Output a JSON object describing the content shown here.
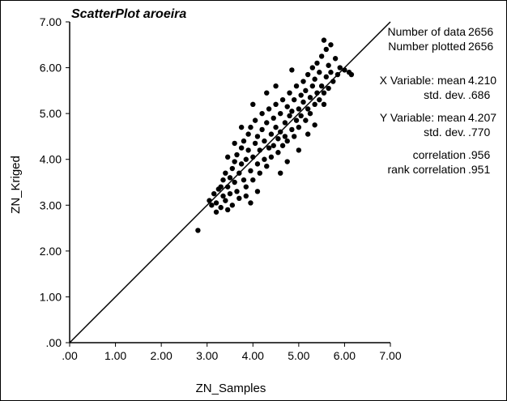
{
  "chart_data": {
    "type": "scatter",
    "title": "ScatterPlot aroeira",
    "xlabel": "ZN_Samples",
    "ylabel": "ZN_Kriged",
    "xlim": [
      0,
      7
    ],
    "ylim": [
      0,
      7
    ],
    "x_ticks": [
      ".00",
      "1.00",
      "2.00",
      "3.00",
      "4.00",
      "5.00",
      "6.00",
      "7.00"
    ],
    "y_ticks": [
      ".00",
      "1.00",
      "2.00",
      "3.00",
      "4.00",
      "5.00",
      "6.00",
      "7.00"
    ],
    "reference_line": {
      "from": [
        0,
        0
      ],
      "to": [
        7,
        7
      ]
    },
    "marker_color": "#000000",
    "grid": false,
    "stats": {
      "number_of_data": "2656",
      "number_plotted": "2656",
      "x_mean": "4.210",
      "x_std": ".686",
      "y_mean": "4.207",
      "y_std": ".770",
      "correlation": ".956",
      "rank_correlation": ".951"
    },
    "stat_labels": {
      "number_of_data": "Number of data",
      "number_plotted": "Number plotted",
      "x_mean": "X Variable: mean",
      "x_std": "std. dev.",
      "y_mean": "Y Variable: mean",
      "y_std": "std. dev.",
      "correlation": "correlation",
      "rank_correlation": "rank correlation"
    },
    "points": [
      [
        2.8,
        2.45
      ],
      [
        3.05,
        3.1
      ],
      [
        3.1,
        3.0
      ],
      [
        3.15,
        3.25
      ],
      [
        3.2,
        3.05
      ],
      [
        3.25,
        3.35
      ],
      [
        3.3,
        2.95
      ],
      [
        3.3,
        3.4
      ],
      [
        3.35,
        3.2
      ],
      [
        3.35,
        3.55
      ],
      [
        3.4,
        3.1
      ],
      [
        3.4,
        3.7
      ],
      [
        3.45,
        3.4
      ],
      [
        3.45,
        2.9
      ],
      [
        3.5,
        3.6
      ],
      [
        3.5,
        3.25
      ],
      [
        3.55,
        3.8
      ],
      [
        3.55,
        3.0
      ],
      [
        3.6,
        3.5
      ],
      [
        3.6,
        3.95
      ],
      [
        3.65,
        3.3
      ],
      [
        3.65,
        4.1
      ],
      [
        3.7,
        3.7
      ],
      [
        3.7,
        3.15
      ],
      [
        3.75,
        3.9
      ],
      [
        3.75,
        4.25
      ],
      [
        3.8,
        3.55
      ],
      [
        3.8,
        4.4
      ],
      [
        3.85,
        4.0
      ],
      [
        3.85,
        3.4
      ],
      [
        3.9,
        4.2
      ],
      [
        3.9,
        4.55
      ],
      [
        3.95,
        3.75
      ],
      [
        3.95,
        4.7
      ],
      [
        4.0,
        4.05
      ],
      [
        4.0,
        3.55
      ],
      [
        4.05,
        4.35
      ],
      [
        4.05,
        4.85
      ],
      [
        4.1,
        3.9
      ],
      [
        4.1,
        4.5
      ],
      [
        4.15,
        4.2
      ],
      [
        4.15,
        3.7
      ],
      [
        4.2,
        4.65
      ],
      [
        4.2,
        5.0
      ],
      [
        4.25,
        4.0
      ],
      [
        4.25,
        4.4
      ],
      [
        4.3,
        4.8
      ],
      [
        4.3,
        3.85
      ],
      [
        4.35,
        4.25
      ],
      [
        4.35,
        5.1
      ],
      [
        4.4,
        4.55
      ],
      [
        4.4,
        4.05
      ],
      [
        4.45,
        4.9
      ],
      [
        4.45,
        4.3
      ],
      [
        4.5,
        4.7
      ],
      [
        4.5,
        5.2
      ],
      [
        4.55,
        4.15
      ],
      [
        4.55,
        4.45
      ],
      [
        4.6,
        5.0
      ],
      [
        4.6,
        4.6
      ],
      [
        4.65,
        4.3
      ],
      [
        4.65,
        5.3
      ],
      [
        4.7,
        4.8
      ],
      [
        4.7,
        4.5
      ],
      [
        4.75,
        5.15
      ],
      [
        4.75,
        4.4
      ],
      [
        4.8,
        4.95
      ],
      [
        4.8,
        5.45
      ],
      [
        4.85,
        4.65
      ],
      [
        4.85,
        5.05
      ],
      [
        4.9,
        4.5
      ],
      [
        4.9,
        5.3
      ],
      [
        4.95,
        4.85
      ],
      [
        4.95,
        5.6
      ],
      [
        5.0,
        5.1
      ],
      [
        5.0,
        4.7
      ],
      [
        5.05,
        5.4
      ],
      [
        5.05,
        4.95
      ],
      [
        5.1,
        5.25
      ],
      [
        5.1,
        5.7
      ],
      [
        5.15,
        4.85
      ],
      [
        5.15,
        5.5
      ],
      [
        5.2,
        5.1
      ],
      [
        5.2,
        5.85
      ],
      [
        5.25,
        5.35
      ],
      [
        5.25,
        5.0
      ],
      [
        5.3,
        5.6
      ],
      [
        5.3,
        6.0
      ],
      [
        5.35,
        5.2
      ],
      [
        5.35,
        5.75
      ],
      [
        5.4,
        5.45
      ],
      [
        5.4,
        6.1
      ],
      [
        5.45,
        5.3
      ],
      [
        5.45,
        5.9
      ],
      [
        5.5,
        5.6
      ],
      [
        5.5,
        6.25
      ],
      [
        5.55,
        5.45
      ],
      [
        5.55,
        6.6
      ],
      [
        5.6,
        5.8
      ],
      [
        5.6,
        6.4
      ],
      [
        5.65,
        5.55
      ],
      [
        5.65,
        6.05
      ],
      [
        5.7,
        5.9
      ],
      [
        5.7,
        6.5
      ],
      [
        5.75,
        5.7
      ],
      [
        5.8,
        6.2
      ],
      [
        5.85,
        5.85
      ],
      [
        5.9,
        6.0
      ],
      [
        6.0,
        5.95
      ],
      [
        6.1,
        5.9
      ],
      [
        6.15,
        5.85
      ],
      [
        3.95,
        3.05
      ],
      [
        3.2,
        2.85
      ],
      [
        4.1,
        3.3
      ],
      [
        4.6,
        3.7
      ],
      [
        4.75,
        3.95
      ],
      [
        5.0,
        4.2
      ],
      [
        4.3,
        5.45
      ],
      [
        4.0,
        5.2
      ],
      [
        3.75,
        4.7
      ],
      [
        3.6,
        4.35
      ],
      [
        3.45,
        4.05
      ],
      [
        5.2,
        4.55
      ],
      [
        5.35,
        4.75
      ],
      [
        4.5,
        5.6
      ],
      [
        4.85,
        5.95
      ],
      [
        3.85,
        3.2
      ],
      [
        5.55,
        5.2
      ]
    ]
  }
}
